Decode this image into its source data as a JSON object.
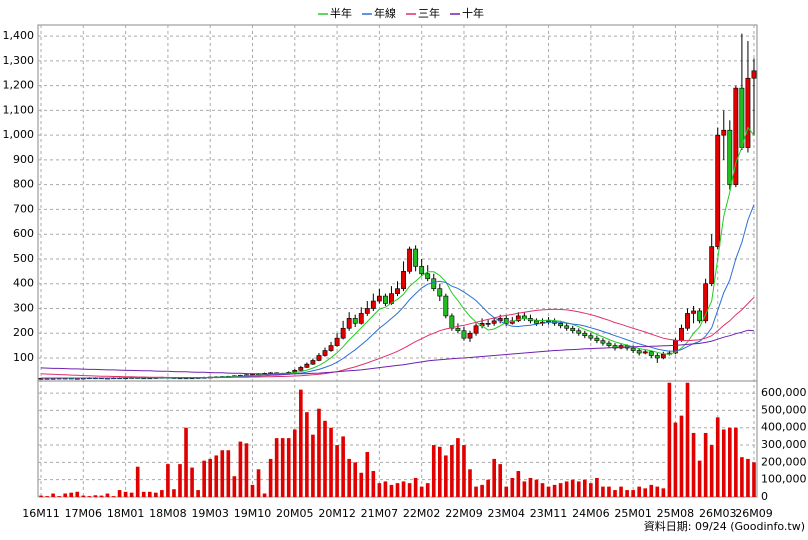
{
  "chart_data": {
    "type": "candlestick",
    "categories": [
      "16M11",
      null,
      null,
      null,
      null,
      null,
      null,
      "17M06",
      null,
      null,
      null,
      null,
      null,
      null,
      "18M01",
      null,
      null,
      null,
      null,
      null,
      null,
      "18M08",
      null,
      null,
      null,
      null,
      null,
      null,
      "19M03",
      null,
      null,
      null,
      null,
      null,
      null,
      "19M10",
      null,
      null,
      null,
      null,
      null,
      null,
      "20M05",
      null,
      null,
      null,
      null,
      null,
      null,
      "20M12",
      null,
      null,
      null,
      null,
      null,
      null,
      "21M07",
      null,
      null,
      null,
      null,
      null,
      null,
      "22M02",
      null,
      null,
      null,
      null,
      null,
      null,
      "22M09",
      null,
      null,
      null,
      null,
      null,
      null,
      "23M04",
      null,
      null,
      null,
      null,
      null,
      null,
      "23M11",
      null,
      null,
      null,
      null,
      null,
      null,
      "24M06",
      null,
      null,
      null,
      null,
      null,
      null,
      "25M01",
      null,
      null,
      null,
      null,
      null,
      null,
      "25M08",
      null,
      null,
      null,
      null,
      null,
      null,
      "26M03",
      null,
      null,
      null,
      null,
      null,
      "26M09"
    ],
    "open": [
      18,
      18,
      18,
      18,
      19,
      19,
      18,
      18,
      19,
      20,
      20,
      19,
      19,
      20,
      20,
      20,
      21,
      20,
      19,
      20,
      21,
      22,
      21,
      20,
      20,
      19,
      20,
      21,
      22,
      23,
      24,
      25,
      26,
      28,
      30,
      32,
      35,
      36,
      38,
      40,
      38,
      36,
      42,
      50,
      62,
      75,
      90,
      110,
      130,
      150,
      180,
      220,
      260,
      240,
      280,
      300,
      330,
      350,
      320,
      360,
      380,
      450,
      540,
      470,
      440,
      420,
      380,
      350,
      270,
      220,
      210,
      180,
      200,
      230,
      240,
      240,
      250,
      260,
      240,
      250,
      270,
      260,
      250,
      240,
      245,
      250,
      240,
      230,
      220,
      210,
      200,
      190,
      180,
      170,
      160,
      150,
      140,
      150,
      140,
      130,
      120,
      125,
      110,
      100,
      115,
      120,
      170,
      220,
      280,
      290,
      250,
      400,
      550,
      1000,
      1020,
      800,
      1190,
      950,
      1230
    ],
    "high": [
      20,
      20,
      20,
      21,
      21,
      20,
      20,
      21,
      22,
      22,
      21,
      21,
      22,
      22,
      22,
      23,
      23,
      21,
      22,
      23,
      24,
      24,
      22,
      22,
      21,
      22,
      23,
      24,
      25,
      26,
      27,
      28,
      30,
      32,
      35,
      38,
      39,
      41,
      43,
      42,
      40,
      46,
      55,
      68,
      82,
      98,
      120,
      142,
      165,
      200,
      250,
      285,
      275,
      305,
      330,
      360,
      380,
      360,
      390,
      410,
      490,
      550,
      555,
      500,
      475,
      440,
      400,
      360,
      280,
      240,
      225,
      210,
      240,
      260,
      255,
      265,
      275,
      270,
      265,
      285,
      285,
      275,
      260,
      260,
      265,
      260,
      250,
      240,
      230,
      220,
      210,
      200,
      190,
      180,
      170,
      160,
      160,
      155,
      150,
      140,
      135,
      130,
      120,
      125,
      130,
      180,
      235,
      300,
      310,
      300,
      420,
      600,
      1030,
      1100,
      1060,
      1200,
      1410,
      1380,
      1310
    ],
    "low": [
      16,
      16,
      16,
      17,
      17,
      16,
      16,
      17,
      18,
      18,
      17,
      17,
      18,
      18,
      18,
      19,
      19,
      17,
      18,
      19,
      20,
      20,
      19,
      18,
      17,
      17,
      19,
      20,
      21,
      22,
      23,
      24,
      25,
      27,
      29,
      31,
      33,
      34,
      35,
      36,
      33,
      34,
      40,
      48,
      60,
      72,
      87,
      105,
      125,
      145,
      175,
      210,
      225,
      235,
      270,
      290,
      320,
      310,
      315,
      350,
      370,
      440,
      450,
      430,
      410,
      370,
      330,
      260,
      210,
      200,
      170,
      165,
      190,
      220,
      225,
      230,
      240,
      230,
      235,
      245,
      250,
      240,
      230,
      230,
      235,
      230,
      220,
      210,
      200,
      190,
      180,
      170,
      160,
      150,
      140,
      130,
      135,
      130,
      120,
      110,
      115,
      100,
      80,
      95,
      110,
      115,
      165,
      210,
      240,
      240,
      240,
      390,
      540,
      900,
      780,
      790,
      940,
      930,
      1000
    ],
    "close": [
      18,
      18,
      18,
      19,
      19,
      18,
      18,
      19,
      20,
      20,
      19,
      19,
      20,
      20,
      20,
      21,
      20,
      19,
      20,
      21,
      22,
      21,
      20,
      20,
      19,
      20,
      21,
      22,
      23,
      24,
      25,
      26,
      28,
      30,
      32,
      35,
      36,
      38,
      40,
      38,
      36,
      42,
      50,
      62,
      75,
      90,
      110,
      130,
      150,
      180,
      220,
      260,
      240,
      280,
      300,
      330,
      350,
      320,
      360,
      380,
      450,
      540,
      470,
      440,
      420,
      380,
      350,
      270,
      220,
      210,
      180,
      200,
      230,
      240,
      240,
      250,
      260,
      240,
      250,
      270,
      260,
      250,
      240,
      245,
      250,
      240,
      230,
      220,
      210,
      200,
      190,
      180,
      170,
      160,
      150,
      140,
      150,
      140,
      130,
      120,
      125,
      110,
      100,
      115,
      120,
      170,
      220,
      280,
      290,
      250,
      400,
      550,
      1000,
      1020,
      800,
      1190,
      950,
      1230,
      1260
    ],
    "up_color": "#e00000",
    "down_color": "#22bb22",
    "ylim": [
      7,
      1445
    ],
    "yticks": [
      100,
      200,
      300,
      400,
      500,
      600,
      700,
      800,
      900,
      {
        "value": 1000,
        "label": "1,000"
      },
      {
        "value": 1100,
        "label": "1,100"
      },
      {
        "value": 1200,
        "label": "1,200"
      },
      {
        "value": 1300,
        "label": "1,300"
      },
      {
        "value": 1400,
        "label": "1,400"
      }
    ],
    "grid": true,
    "series": [
      {
        "name": "半年",
        "color": "#22cc22",
        "values": [
          19,
          19,
          19,
          19,
          19,
          19,
          19,
          19,
          19,
          19,
          19,
          19,
          19,
          19,
          20,
          20,
          20,
          20,
          20,
          20,
          20,
          20,
          20,
          20,
          20,
          20,
          20,
          21,
          21,
          22,
          23,
          24,
          25,
          26,
          28,
          29,
          31,
          33,
          35,
          37,
          38,
          39,
          41,
          45,
          51,
          59,
          70,
          84,
          101,
          121,
          145,
          173,
          197,
          222,
          247,
          272,
          297,
          305,
          322,
          337,
          357,
          390,
          410,
          432,
          448,
          448,
          433,
          408,
          363,
          332,
          297,
          268,
          245,
          230,
          213,
          217,
          230,
          245,
          248,
          255,
          260,
          255,
          252,
          251,
          253,
          251,
          248,
          242,
          236,
          226,
          216,
          207,
          195,
          185,
          175,
          165,
          158,
          152,
          145,
          138,
          134,
          129,
          123,
          117,
          115,
          123,
          140,
          164,
          200,
          225,
          275,
          330,
          500,
          673,
          770,
          890,
          950,
          1031,
          1000
        ]
      },
      {
        "name": "年線",
        "color": "#2a6fd6",
        "values": [
          19,
          19,
          19,
          19,
          19,
          19,
          19,
          19,
          19,
          19,
          19,
          19,
          19,
          19,
          20,
          20,
          20,
          20,
          20,
          20,
          20,
          20,
          20,
          20,
          20,
          20,
          20,
          20,
          21,
          21,
          22,
          22,
          23,
          24,
          25,
          26,
          27,
          28,
          30,
          31,
          32,
          34,
          36,
          39,
          43,
          48,
          54,
          62,
          71,
          83,
          98,
          116,
          133,
          153,
          174,
          197,
          220,
          239,
          260,
          281,
          306,
          336,
          360,
          383,
          398,
          406,
          410,
          405,
          390,
          381,
          366,
          350,
          332,
          307,
          282,
          263,
          248,
          236,
          228,
          227,
          230,
          232,
          237,
          240,
          244,
          245,
          244,
          241,
          237,
          234,
          229,
          222,
          215,
          207,
          199,
          190,
          182,
          173,
          165,
          157,
          150,
          143,
          136,
          131,
          127,
          128,
          134,
          146,
          158,
          167,
          188,
          222,
          292,
          364,
          415,
          502,
          567,
          657,
          720
        ]
      },
      {
        "name": "三年",
        "color": "#e0306a",
        "values": [
          36,
          35,
          34,
          33,
          32,
          31,
          30,
          29,
          28,
          27,
          26,
          26,
          25,
          25,
          24,
          24,
          23,
          23,
          22,
          22,
          22,
          21,
          21,
          21,
          21,
          21,
          21,
          21,
          21,
          21,
          21,
          21,
          22,
          22,
          22,
          23,
          23,
          24,
          24,
          25,
          25,
          26,
          27,
          28,
          30,
          32,
          34,
          37,
          41,
          45,
          51,
          58,
          64,
          72,
          80,
          89,
          98,
          107,
          117,
          127,
          139,
          153,
          166,
          178,
          190,
          200,
          210,
          217,
          222,
          228,
          232,
          238,
          244,
          250,
          256,
          262,
          268,
          272,
          276,
          281,
          285,
          289,
          292,
          294,
          296,
          297,
          296,
          294,
          291,
          286,
          281,
          275,
          268,
          260,
          252,
          243,
          236,
          228,
          220,
          212,
          205,
          196,
          188,
          180,
          175,
          172,
          170,
          170,
          172,
          174,
          180,
          190,
          210,
          232,
          250,
          275,
          295,
          320,
          345
        ]
      },
      {
        "name": "十年",
        "color": "#7020b0",
        "values": [
          60,
          59,
          58,
          58,
          57,
          56,
          56,
          55,
          54,
          54,
          53,
          52,
          52,
          51,
          50,
          50,
          49,
          48,
          48,
          47,
          46,
          46,
          45,
          44,
          44,
          43,
          42,
          42,
          41,
          40,
          40,
          39,
          38,
          38,
          37,
          36,
          36,
          35,
          35,
          35,
          35,
          35,
          36,
          36,
          37,
          38,
          39,
          41,
          42,
          44,
          46,
          48,
          50,
          52,
          55,
          58,
          61,
          64,
          67,
          70,
          73,
          77,
          81,
          84,
          88,
          91,
          93,
          95,
          97,
          99,
          100,
          102,
          104,
          106,
          108,
          110,
          112,
          114,
          116,
          118,
          120,
          122,
          124,
          126,
          128,
          130,
          131,
          133,
          134,
          135,
          137,
          138,
          139,
          140,
          141,
          142,
          143,
          144,
          145,
          146,
          146,
          147,
          148,
          149,
          150,
          151,
          153,
          155,
          157,
          159,
          163,
          168,
          176,
          184,
          190,
          198,
          204,
          212,
          210
        ]
      }
    ],
    "volume": {
      "color": "#e00000",
      "ylim": [
        0,
        670000
      ],
      "yticks": [
        0,
        {
          "value": 100000,
          "label": "100,000"
        },
        {
          "value": 200000,
          "label": "200,000"
        },
        {
          "value": 300000,
          "label": "300,000"
        },
        {
          "value": 400000,
          "label": "400,000"
        },
        {
          "value": 500000,
          "label": "500,000"
        },
        {
          "value": 600000,
          "label": "600,000"
        }
      ],
      "values": [
        8000,
        5000,
        20000,
        5000,
        20000,
        25000,
        30000,
        8000,
        5000,
        10000,
        8000,
        20000,
        5000,
        40000,
        30000,
        25000,
        175000,
        30000,
        30000,
        25000,
        40000,
        190000,
        45000,
        190000,
        400000,
        170000,
        40000,
        210000,
        220000,
        240000,
        270000,
        270000,
        120000,
        320000,
        310000,
        70000,
        160000,
        20000,
        220000,
        340000,
        340000,
        340000,
        390000,
        620000,
        490000,
        360000,
        510000,
        440000,
        400000,
        300000,
        350000,
        220000,
        200000,
        140000,
        260000,
        150000,
        80000,
        90000,
        70000,
        80000,
        90000,
        80000,
        110000,
        60000,
        80000,
        300000,
        290000,
        240000,
        300000,
        340000,
        300000,
        160000,
        60000,
        70000,
        100000,
        220000,
        190000,
        60000,
        110000,
        150000,
        90000,
        110000,
        100000,
        80000,
        60000,
        70000,
        80000,
        90000,
        100000,
        90000,
        100000,
        80000,
        110000,
        60000,
        60000,
        40000,
        60000,
        40000,
        40000,
        60000,
        50000,
        70000,
        60000,
        50000,
        660000,
        430000,
        470000,
        660000,
        370000,
        210000,
        370000,
        300000,
        460000,
        390000,
        400000,
        400000,
        230000,
        220000,
        200000
      ]
    },
    "source": "資料日期: 09/24 (Goodinfo.tw)"
  }
}
